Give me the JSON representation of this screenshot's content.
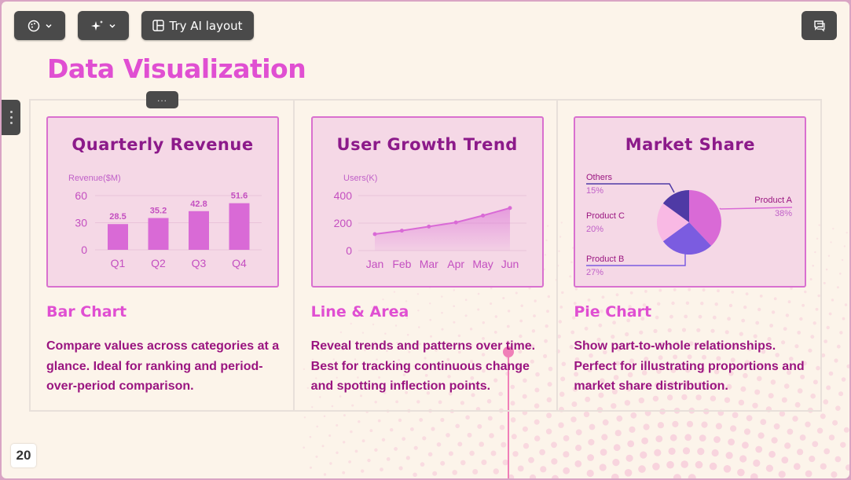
{
  "toolbar": {
    "theme_icon": "palette-icon",
    "ai_icon": "sparkle-icon",
    "layout_icon": "layout-icon",
    "layout_label": "Try AI layout",
    "comment_icon": "comment-icon"
  },
  "title": "Data Visualization",
  "drag_handle": "...",
  "page_number": "20",
  "colors": {
    "accent": "#e04fd2",
    "card_title": "#8c1a8a",
    "bar": "#d96ad6",
    "line": "#d96ad6",
    "pie_a": "#d96ad6",
    "pie_b": "#7b5ce0",
    "pie_c": "#f9b9e4",
    "pie_others": "#4f3aa5"
  },
  "cards": [
    {
      "heading": "Quarterly Revenue",
      "name": "Bar Chart",
      "description": "Compare values across categories at a glance. Ideal for ranking and period-over-period comparison."
    },
    {
      "heading": "User Growth Trend",
      "name": "Line & Area",
      "description": "Reveal trends and patterns over time. Best for tracking continuous change and spotting inflection points."
    },
    {
      "heading": "Market Share",
      "name": "Pie Chart",
      "description": "Show part-to-whole relationships. Perfect for illustrating proportions and market share distribution."
    }
  ],
  "chart_data": [
    {
      "type": "bar",
      "title": "Quarterly Revenue",
      "ylabel": "Revenue($M)",
      "categories": [
        "Q1",
        "Q2",
        "Q3",
        "Q4"
      ],
      "values": [
        28.5,
        35.2,
        42.8,
        51.6
      ],
      "yticks": [
        "0",
        "30",
        "60"
      ],
      "ylim": [
        0,
        60
      ],
      "grid": true
    },
    {
      "type": "area",
      "title": "User Growth Trend",
      "ylabel": "Users(K)",
      "categories": [
        "Jan",
        "Feb",
        "Mar",
        "Apr",
        "May",
        "Jun"
      ],
      "values": [
        120,
        145,
        175,
        205,
        255,
        310
      ],
      "yticks": [
        "0",
        "200",
        "400"
      ],
      "ylim": [
        0,
        400
      ],
      "grid": true
    },
    {
      "type": "pie",
      "title": "Market Share",
      "slices": [
        {
          "label": "Product A",
          "pct": "38%",
          "value": 38
        },
        {
          "label": "Product B",
          "pct": "27%",
          "value": 27
        },
        {
          "label": "Product C",
          "pct": "20%",
          "value": 20
        },
        {
          "label": "Others",
          "pct": "15%",
          "value": 15
        }
      ]
    }
  ]
}
